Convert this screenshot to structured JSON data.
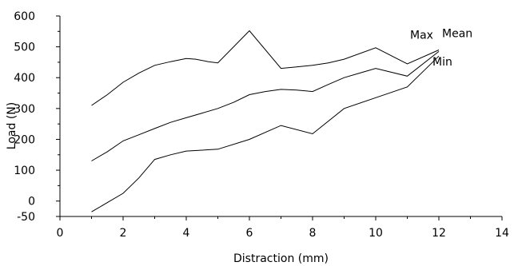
{
  "chart_data": {
    "type": "line",
    "title": "",
    "xlabel": "Distraction (mm)",
    "ylabel": "Load (N)",
    "xlim": [
      0,
      14
    ],
    "ylim": [
      -50,
      600
    ],
    "x_ticks": [
      0,
      2,
      4,
      6,
      8,
      10,
      12,
      14
    ],
    "y_ticks": [
      -50,
      0,
      100,
      200,
      300,
      400,
      500,
      600
    ],
    "grid": false,
    "legend": "none",
    "series": [
      {
        "name": "Max",
        "color": "#000000",
        "x": [
          1,
          1.5,
          2,
          2.5,
          3,
          3.5,
          4,
          4.3,
          4.7,
          5,
          6,
          7,
          7.5,
          8,
          8.5,
          9,
          10,
          11,
          12
        ],
        "y": [
          310,
          345,
          385,
          415,
          440,
          452,
          462,
          460,
          452,
          448,
          552,
          430,
          435,
          440,
          448,
          460,
          497,
          445,
          490
        ]
      },
      {
        "name": "Mean",
        "color": "#000000",
        "x": [
          1,
          1.5,
          2,
          2.5,
          3,
          3.5,
          4,
          4.5,
          5,
          5.5,
          6,
          6.5,
          7,
          7.5,
          8,
          8.5,
          9,
          9.5,
          10,
          11,
          12
        ],
        "y": [
          130,
          160,
          195,
          215,
          235,
          255,
          270,
          285,
          300,
          320,
          345,
          355,
          362,
          360,
          355,
          378,
          400,
          415,
          430,
          405,
          485
        ]
      },
      {
        "name": "Min",
        "color": "#000000",
        "x": [
          1,
          1.5,
          2,
          2.5,
          3,
          3.5,
          4,
          4.5,
          5,
          6,
          7,
          8,
          9,
          10,
          11,
          12
        ],
        "y": [
          -35,
          -5,
          25,
          75,
          135,
          150,
          162,
          165,
          168,
          200,
          245,
          218,
          300,
          335,
          370,
          470
        ]
      }
    ]
  }
}
